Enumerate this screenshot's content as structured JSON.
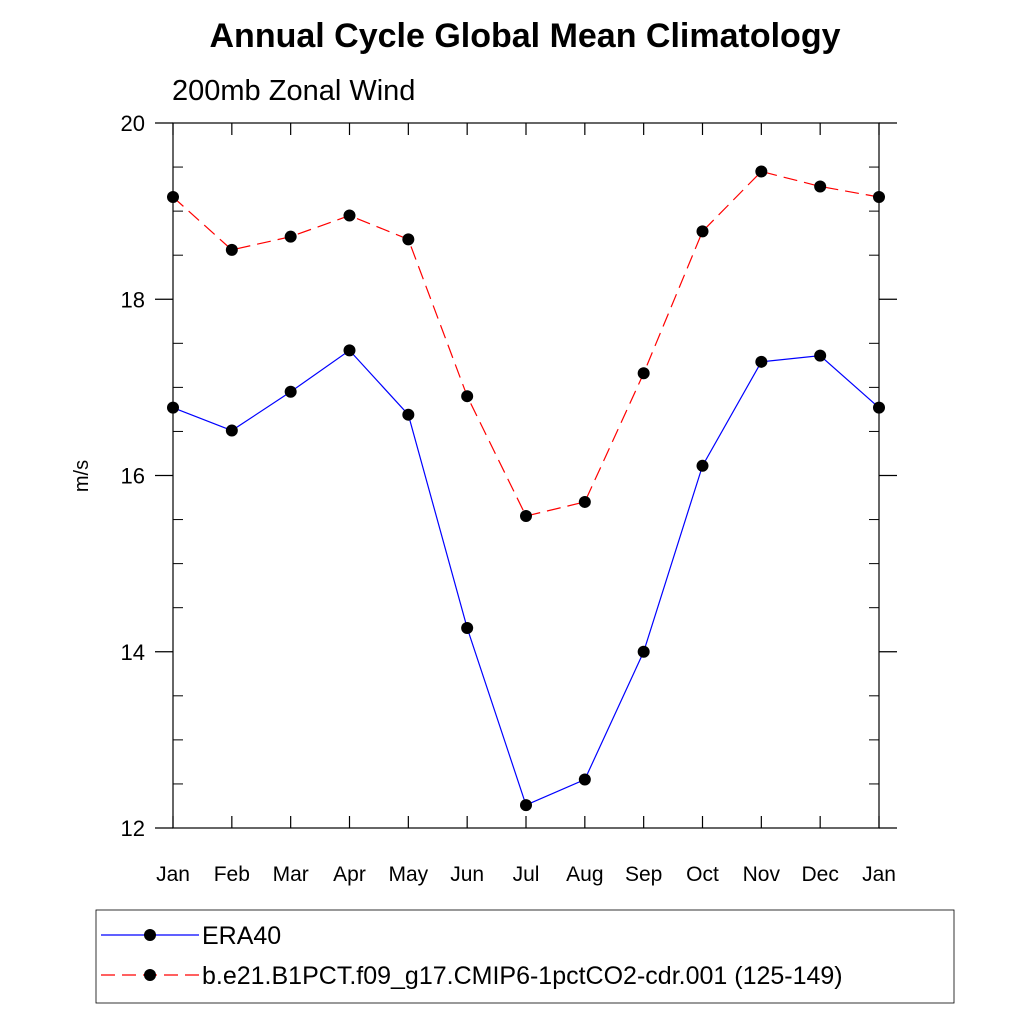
{
  "chart_data": {
    "type": "line",
    "title": "Annual Cycle Global Mean Climatology",
    "subtitle": "200mb Zonal Wind",
    "xlabel": "",
    "ylabel": "m/s",
    "categories": [
      "Jan",
      "Feb",
      "Mar",
      "Apr",
      "May",
      "Jun",
      "Jul",
      "Aug",
      "Sep",
      "Oct",
      "Nov",
      "Dec",
      "Jan"
    ],
    "ylim": [
      12,
      20
    ],
    "yticks": [
      12,
      14,
      16,
      18,
      20
    ],
    "grid": false,
    "legend_position": "bottom",
    "series": [
      {
        "name": "ERA40",
        "color": "#0000ff",
        "line_style": "solid",
        "marker": "filled-circle",
        "values": [
          16.77,
          16.51,
          16.95,
          17.42,
          16.69,
          14.27,
          12.26,
          12.55,
          14.0,
          16.11,
          17.29,
          17.36,
          16.77
        ]
      },
      {
        "name": "b.e21.B1PCT.f09_g17.CMIP6-1pctCO2-cdr.001 (125-149)",
        "color": "#ff0000",
        "line_style": "dashed",
        "marker": "filled-circle",
        "values": [
          19.16,
          18.56,
          18.71,
          18.95,
          18.68,
          16.9,
          15.54,
          15.7,
          17.16,
          18.77,
          19.45,
          19.28,
          19.16
        ]
      }
    ]
  }
}
